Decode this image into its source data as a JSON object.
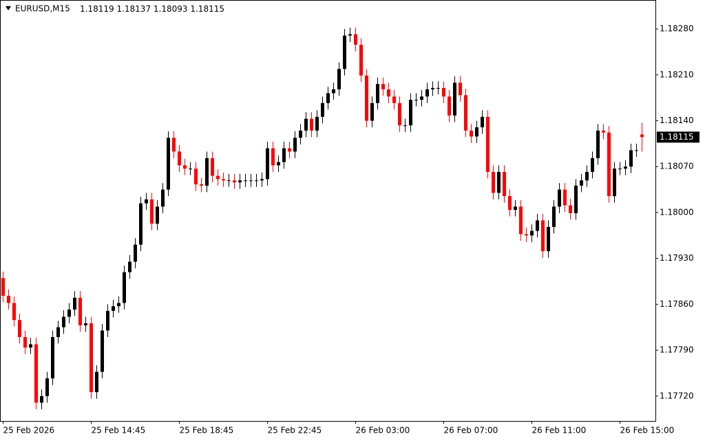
{
  "chart_data": {
    "type": "candlestick",
    "title": "EURUSD,M15",
    "categories": [
      "25 Feb 2026",
      null,
      null,
      null,
      null,
      null,
      null,
      null,
      null,
      null,
      null,
      null,
      null,
      null,
      null,
      null,
      "25 Feb 14:45",
      null,
      null,
      null,
      null,
      null,
      null,
      null,
      null,
      null,
      null,
      null,
      null,
      null,
      null,
      null,
      "25 Feb 18:45",
      null,
      null,
      null,
      null,
      null,
      null,
      null,
      null,
      null,
      null,
      null,
      null,
      null,
      null,
      null,
      "25 Feb 22:45",
      null,
      null,
      null,
      null,
      null,
      null,
      null,
      null,
      null,
      null,
      null,
      null,
      null,
      null,
      null,
      "26 Feb 03:00",
      null,
      null,
      null,
      null,
      null,
      null,
      null,
      null,
      null,
      null,
      null,
      null,
      null,
      null,
      null,
      "26 Feb 07:00",
      null,
      null,
      null,
      null,
      null,
      null,
      null,
      null,
      null,
      null,
      null,
      null,
      null,
      null,
      null,
      "26 Feb 11:00",
      null,
      null,
      null,
      null,
      null,
      null,
      null,
      null,
      null,
      null,
      null,
      null,
      null,
      null,
      null,
      "26 Feb 15:00",
      null,
      null,
      null,
      null
    ],
    "open": [
      1.179,
      1.17873,
      1.17862,
      1.17836,
      1.1781,
      1.17794,
      1.17799,
      1.1771,
      1.1772,
      1.17747,
      1.1781,
      1.17825,
      1.17841,
      1.17852,
      1.1787,
      1.17828,
      1.17831,
      1.17726,
      1.17757,
      1.1782,
      1.1785,
      1.17857,
      1.17862,
      1.17909,
      1.17925,
      1.17951,
      1.18014,
      1.1802,
      1.17983,
      1.18009,
      1.18035,
      1.18114,
      1.18093,
      1.18072,
      1.18067,
      1.18067,
      1.18043,
      1.18041,
      1.18083,
      1.18056,
      1.18051,
      1.18049,
      1.18049,
      1.18046,
      1.18049,
      1.18049,
      1.18049,
      1.18049,
      1.18051,
      1.18098,
      1.18072,
      1.18077,
      1.18098,
      1.18093,
      1.18114,
      1.18125,
      1.18143,
      1.18125,
      1.18146,
      1.18167,
      1.18182,
      1.18188,
      1.18219,
      1.1827,
      1.18272,
      1.18256,
      1.18209,
      1.1814,
      1.18167,
      1.18196,
      1.18188,
      1.18177,
      1.18167,
      1.18133,
      1.18133,
      1.18172,
      1.18172,
      1.18177,
      1.18188,
      1.1819,
      1.1819,
      1.18177,
      1.18148,
      1.18198,
      1.18179,
      1.18125,
      1.18116,
      1.1813,
      1.18146,
      1.18062,
      1.1803,
      1.18062,
      1.18025,
      1.18004,
      1.18009,
      1.17967,
      1.17965,
      1.17972,
      1.17988,
      1.17941,
      1.17978,
      1.18009,
      1.18035,
      1.18011,
      1.17999,
      1.18041,
      1.18049,
      1.18062,
      1.18083,
      1.18125,
      1.18122,
      1.18025,
      1.18067,
      1.18067,
      1.1807,
      1.18095,
      1.18119
    ],
    "high": [
      1.1791,
      1.17883,
      1.17872,
      1.17846,
      1.1782,
      1.17809,
      1.17809,
      1.1773,
      1.17757,
      1.1782,
      1.17835,
      1.17851,
      1.17862,
      1.1788,
      1.1788,
      1.17841,
      1.17841,
      1.17767,
      1.1783,
      1.1786,
      1.17867,
      1.17872,
      1.17919,
      1.17935,
      1.17961,
      1.18024,
      1.1803,
      1.1803,
      1.18019,
      1.18045,
      1.18124,
      1.18124,
      1.18103,
      1.18082,
      1.18077,
      1.18077,
      1.18053,
      1.18093,
      1.18093,
      1.18066,
      1.18061,
      1.18059,
      1.18059,
      1.18059,
      1.18059,
      1.18059,
      1.18059,
      1.18061,
      1.18108,
      1.18108,
      1.18087,
      1.18108,
      1.18108,
      1.18124,
      1.18135,
      1.18153,
      1.18153,
      1.18156,
      1.18177,
      1.18192,
      1.18198,
      1.18229,
      1.1828,
      1.18282,
      1.18282,
      1.18266,
      1.18219,
      1.18177,
      1.18206,
      1.18206,
      1.18198,
      1.18187,
      1.18177,
      1.18143,
      1.18182,
      1.18182,
      1.18187,
      1.18198,
      1.182,
      1.182,
      1.182,
      1.18187,
      1.18208,
      1.18208,
      1.18189,
      1.18135,
      1.1814,
      1.18156,
      1.18156,
      1.18072,
      1.18072,
      1.18072,
      1.18035,
      1.18019,
      1.18019,
      1.17977,
      1.17982,
      1.17998,
      1.17998,
      1.17988,
      1.18019,
      1.18045,
      1.18045,
      1.18021,
      1.18051,
      1.18059,
      1.18072,
      1.18093,
      1.18135,
      1.18135,
      1.18132,
      1.18077,
      1.18077,
      1.1808,
      1.18105,
      1.18105,
      1.18137
    ],
    "low": [
      1.17863,
      1.17852,
      1.17826,
      1.178,
      1.17784,
      1.17784,
      1.177,
      1.177,
      1.1771,
      1.17737,
      1.178,
      1.17815,
      1.17831,
      1.17842,
      1.17818,
      1.17818,
      1.17716,
      1.17716,
      1.17747,
      1.1781,
      1.1784,
      1.17847,
      1.17852,
      1.17899,
      1.17915,
      1.17941,
      1.18004,
      1.17973,
      1.17973,
      1.17999,
      1.18025,
      1.18083,
      1.18062,
      1.18057,
      1.18057,
      1.18033,
      1.18031,
      1.18031,
      1.18046,
      1.18041,
      1.18039,
      1.18039,
      1.18036,
      1.18036,
      1.18039,
      1.18039,
      1.18039,
      1.18039,
      1.18041,
      1.18062,
      1.18062,
      1.18067,
      1.18083,
      1.18083,
      1.18104,
      1.18115,
      1.18115,
      1.18115,
      1.18136,
      1.18157,
      1.18172,
      1.18178,
      1.18209,
      1.1826,
      1.18246,
      1.18199,
      1.1813,
      1.1813,
      1.18157,
      1.18178,
      1.18167,
      1.18157,
      1.18123,
      1.18123,
      1.18123,
      1.18162,
      1.18162,
      1.18167,
      1.18178,
      1.1818,
      1.18167,
      1.18138,
      1.18138,
      1.18169,
      1.18115,
      1.18106,
      1.18106,
      1.1812,
      1.18052,
      1.1802,
      1.1802,
      1.18015,
      1.17994,
      1.17994,
      1.17957,
      1.17955,
      1.17955,
      1.17962,
      1.17931,
      1.17931,
      1.17968,
      1.17999,
      1.18001,
      1.17989,
      1.17989,
      1.18031,
      1.18039,
      1.18052,
      1.18073,
      1.18112,
      1.18015,
      1.18015,
      1.18057,
      1.18057,
      1.1806,
      1.18085,
      1.18093
    ],
    "close": [
      1.17873,
      1.17862,
      1.17836,
      1.1781,
      1.17794,
      1.17799,
      1.1771,
      1.1772,
      1.17747,
      1.1781,
      1.17825,
      1.17841,
      1.17852,
      1.1787,
      1.17828,
      1.17831,
      1.17726,
      1.17757,
      1.1782,
      1.1785,
      1.17857,
      1.17862,
      1.17909,
      1.17925,
      1.17951,
      1.18014,
      1.1802,
      1.17983,
      1.18009,
      1.18035,
      1.18114,
      1.18093,
      1.18072,
      1.18067,
      1.18067,
      1.18043,
      1.18041,
      1.18083,
      1.18056,
      1.18051,
      1.18049,
      1.18049,
      1.18046,
      1.18049,
      1.18049,
      1.18049,
      1.18049,
      1.18051,
      1.18098,
      1.18072,
      1.18077,
      1.18098,
      1.18093,
      1.18114,
      1.18125,
      1.18143,
      1.18125,
      1.18146,
      1.18167,
      1.18182,
      1.18188,
      1.18219,
      1.1827,
      1.18272,
      1.18256,
      1.18209,
      1.1814,
      1.18167,
      1.18196,
      1.18188,
      1.18177,
      1.18167,
      1.18133,
      1.18133,
      1.18172,
      1.18172,
      1.18177,
      1.18188,
      1.1819,
      1.1819,
      1.18177,
      1.18148,
      1.18198,
      1.18179,
      1.18125,
      1.18116,
      1.1813,
      1.18146,
      1.18062,
      1.1803,
      1.18062,
      1.18025,
      1.18004,
      1.18009,
      1.17967,
      1.17965,
      1.17972,
      1.17988,
      1.17941,
      1.17978,
      1.18009,
      1.18035,
      1.18011,
      1.17999,
      1.18041,
      1.18049,
      1.18062,
      1.18083,
      1.18125,
      1.18122,
      1.18025,
      1.18067,
      1.18067,
      1.1807,
      1.18095,
      1.18095,
      1.18115
    ],
    "ylim": [
      1.17682,
      1.1832
    ],
    "yticks": [
      {
        "value": 1.1828,
        "label": "1.18280"
      },
      {
        "value": 1.1821,
        "label": "1.18210"
      },
      {
        "value": 1.1814,
        "label": "1.18140"
      },
      {
        "value": 1.1807,
        "label": "1.18070"
      },
      {
        "value": 1.18,
        "label": "1.18000"
      },
      {
        "value": 1.1793,
        "label": "1.17930"
      },
      {
        "value": 1.1786,
        "label": "1.17860"
      },
      {
        "value": 1.1779,
        "label": "1.17790"
      },
      {
        "value": 1.1772,
        "label": "1.17720"
      }
    ],
    "up_color": "#000000",
    "down_color": "#ff0000"
  }
}
